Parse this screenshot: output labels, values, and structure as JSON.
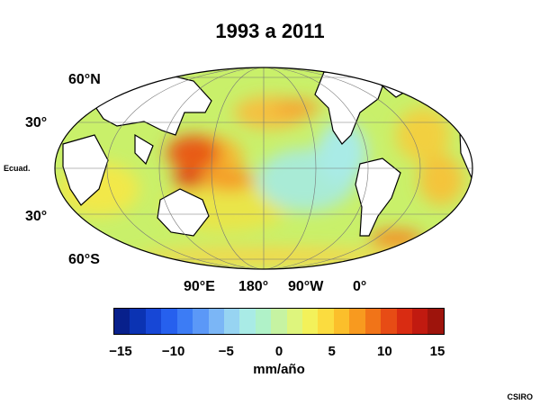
{
  "title": "1993 a 2011",
  "lat_labels": [
    "60°N",
    "30°",
    "Ecuad.",
    "30°",
    "60°S"
  ],
  "lon_labels": [
    "90°E",
    "180°",
    "90°W",
    "0°"
  ],
  "colorbar": {
    "ticks": [
      "−15",
      "−10",
      "−5",
      "0",
      "5",
      "10",
      "15"
    ],
    "unit": "mm/año",
    "colors": [
      "#08208c",
      "#0b33b3",
      "#1747d6",
      "#2660ee",
      "#3c7cf5",
      "#5b98f7",
      "#7bb6f6",
      "#97d4f2",
      "#a9ebe6",
      "#b0f2c8",
      "#c6f3a2",
      "#def57d",
      "#f3f15a",
      "#fbdc3f",
      "#fbbf2b",
      "#f89a1f",
      "#f17418",
      "#e74c15",
      "#d92c12",
      "#c11a10",
      "#9e140c"
    ]
  },
  "credit": "CSIRO"
}
